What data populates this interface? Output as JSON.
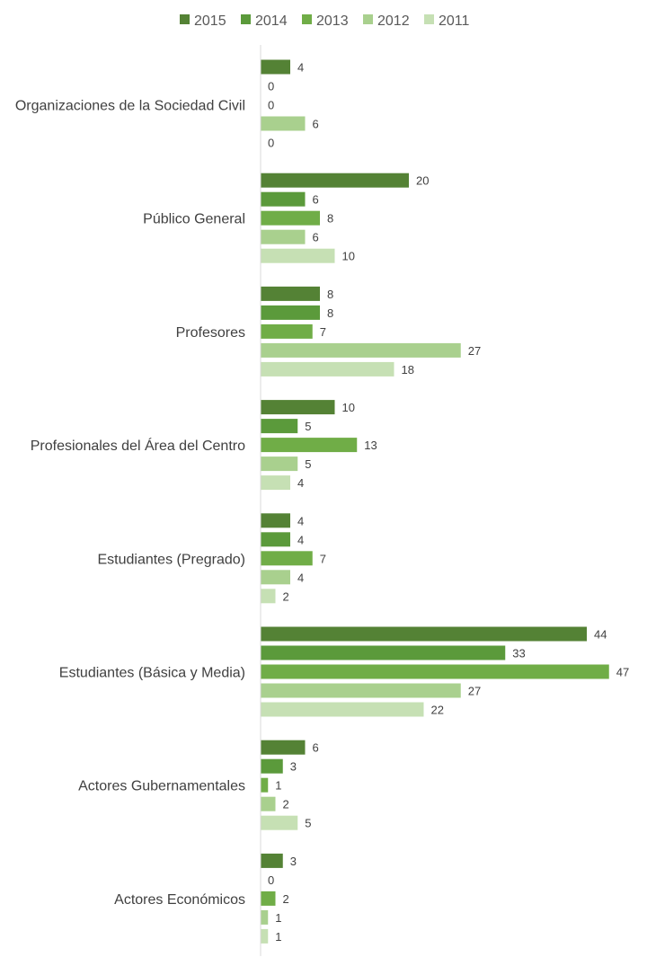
{
  "chart_data": {
    "type": "bar",
    "orientation": "horizontal",
    "categories": [
      "Organizaciones de la Sociedad Civil",
      "Público General",
      "Profesores",
      "Profesionales del Área del Centro",
      "Estudiantes (Pregrado)",
      "Estudiantes (Básica y Media)",
      "Actores Gubernamentales",
      "Actores Económicos"
    ],
    "series": [
      {
        "name": "2015",
        "color": "#548235",
        "values": [
          4,
          20,
          8,
          10,
          4,
          44,
          6,
          3
        ]
      },
      {
        "name": "2014",
        "color": "#5b9a3b",
        "values": [
          0,
          6,
          8,
          5,
          4,
          33,
          3,
          0
        ]
      },
      {
        "name": "2013",
        "color": "#70ad47",
        "values": [
          0,
          8,
          7,
          13,
          7,
          47,
          1,
          2
        ]
      },
      {
        "name": "2012",
        "color": "#a9d08e",
        "values": [
          6,
          6,
          27,
          5,
          4,
          27,
          2,
          1
        ]
      },
      {
        "name": "2011",
        "color": "#c6e0b4",
        "values": [
          0,
          10,
          18,
          4,
          2,
          22,
          5,
          1
        ]
      }
    ],
    "title": "",
    "xlabel": "",
    "ylabel": "",
    "xlim": [
      0,
      47
    ],
    "grid": false,
    "legend_position": "top-center",
    "data_labels": true
  }
}
